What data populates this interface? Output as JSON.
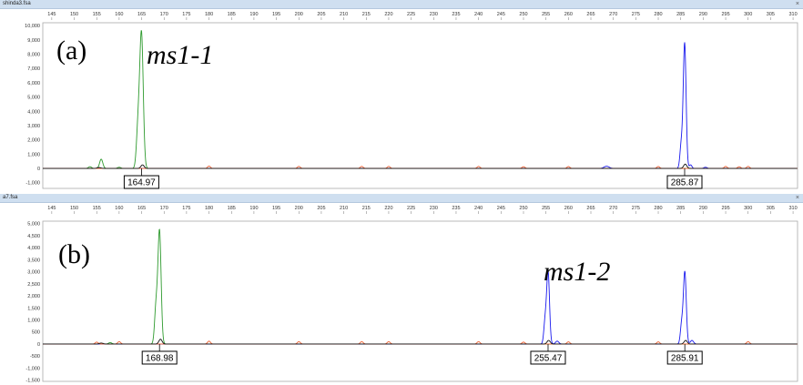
{
  "panels": [
    {
      "file_name": "shinda3.fsa",
      "close_label": "×",
      "panel_label": "(a)",
      "annotation": "ms1-1",
      "peak_labels": [
        "164.97",
        "285.87"
      ],
      "colors": {
        "green": "#2e9a2e",
        "blue": "#1a1aee",
        "red": "#f06030",
        "baseline": "#f07030",
        "black": "#111111"
      }
    },
    {
      "file_name": "a7.fsa",
      "close_label": "×",
      "panel_label": "(b)",
      "annotation": "ms1-2",
      "peak_labels": [
        "168.98",
        "255.47",
        "285.91"
      ],
      "colors": {
        "green": "#2e9a2e",
        "blue": "#1a1aee",
        "red": "#f06030",
        "baseline": "#f07030",
        "black": "#111111"
      }
    }
  ],
  "chart_data": [
    {
      "type": "line",
      "x_ticks": [
        145,
        150,
        155,
        160,
        165,
        170,
        175,
        180,
        185,
        190,
        195,
        200,
        205,
        210,
        215,
        220,
        225,
        230,
        235,
        240,
        245,
        250,
        255,
        260,
        265,
        270,
        275,
        280,
        285,
        290,
        295,
        300,
        305,
        310
      ],
      "xlim": [
        143,
        311
      ],
      "ylim": [
        -1400,
        10200
      ],
      "y_ticks": [
        10000,
        9000,
        8000,
        7000,
        6000,
        5000,
        4000,
        3000,
        2000,
        1000,
        0,
        -1000
      ],
      "y_tick_labels": [
        "10,000",
        "9,000",
        "8,000",
        "7,000",
        "6,000",
        "5,000",
        "4,000",
        "3,000",
        "2,000",
        "1,000",
        "0",
        "-1,000"
      ],
      "series": [
        {
          "color_key": "green",
          "peaks": [
            {
              "x": 164.97,
              "y": 9400,
              "w": 0.55
            },
            {
              "x": 164.2,
              "y": 2800,
              "w": 0.5
            },
            {
              "x": 156.0,
              "y": 650,
              "w": 0.5
            },
            {
              "x": 153.5,
              "y": 120,
              "w": 0.5
            },
            {
              "x": 160.0,
              "y": 80,
              "w": 0.5
            }
          ]
        },
        {
          "color_key": "blue",
          "peaks": [
            {
              "x": 285.87,
              "y": 8800,
              "w": 0.45
            },
            {
              "x": 285.1,
              "y": 1600,
              "w": 0.4
            },
            {
              "x": 268.5,
              "y": 150,
              "w": 0.8
            },
            {
              "x": 287.2,
              "y": 250,
              "w": 0.4
            },
            {
              "x": 290.5,
              "y": 80,
              "w": 0.5
            }
          ]
        },
        {
          "color_key": "red",
          "peaks": [
            {
              "x": 180.0,
              "y": 160,
              "w": 0.45
            },
            {
              "x": 200.0,
              "y": 140,
              "w": 0.45
            },
            {
              "x": 214.0,
              "y": 140,
              "w": 0.45
            },
            {
              "x": 220.0,
              "y": 140,
              "w": 0.45
            },
            {
              "x": 240.0,
              "y": 140,
              "w": 0.45
            },
            {
              "x": 250.0,
              "y": 120,
              "w": 0.45
            },
            {
              "x": 260.0,
              "y": 130,
              "w": 0.45
            },
            {
              "x": 280.0,
              "y": 130,
              "w": 0.45
            },
            {
              "x": 295.0,
              "y": 140,
              "w": 0.45
            },
            {
              "x": 298.0,
              "y": 120,
              "w": 0.45
            },
            {
              "x": 300.0,
              "y": 140,
              "w": 0.45
            }
          ]
        },
        {
          "color_key": "black",
          "peaks": [
            {
              "x": 165.2,
              "y": 250,
              "w": 0.5
            },
            {
              "x": 286.0,
              "y": 300,
              "w": 0.5
            },
            {
              "x": 155.5,
              "y": 60,
              "w": 0.6
            }
          ]
        }
      ],
      "peak_markers": [
        {
          "x": 164.97,
          "label": "164.97"
        },
        {
          "x": 285.87,
          "label": "285.87"
        }
      ]
    },
    {
      "type": "line",
      "x_ticks": [
        145,
        150,
        155,
        160,
        165,
        170,
        175,
        180,
        185,
        190,
        195,
        200,
        205,
        210,
        215,
        220,
        225,
        230,
        235,
        240,
        245,
        250,
        255,
        260,
        265,
        270,
        275,
        280,
        285,
        290,
        295,
        300,
        305,
        310
      ],
      "xlim": [
        143,
        311
      ],
      "ylim": [
        -1550,
        5100
      ],
      "y_ticks": [
        5000,
        4500,
        4000,
        3500,
        3000,
        2500,
        2000,
        1500,
        1000,
        500,
        0,
        -500,
        -1000,
        -1500
      ],
      "y_tick_labels": [
        "5,000",
        "4,500",
        "4,000",
        "3,500",
        "3,000",
        "2,500",
        "2,000",
        "1,500",
        "1,000",
        "500",
        "0",
        "-500",
        "-1,000",
        "-1,500"
      ],
      "series": [
        {
          "color_key": "green",
          "peaks": [
            {
              "x": 168.98,
              "y": 4700,
              "w": 0.5
            },
            {
              "x": 168.2,
              "y": 1500,
              "w": 0.45
            },
            {
              "x": 158.0,
              "y": 60,
              "w": 0.5
            }
          ]
        },
        {
          "color_key": "blue",
          "peaks": [
            {
              "x": 255.47,
              "y": 3000,
              "w": 0.45
            },
            {
              "x": 254.8,
              "y": 900,
              "w": 0.4
            },
            {
              "x": 285.91,
              "y": 3000,
              "w": 0.45
            },
            {
              "x": 285.2,
              "y": 800,
              "w": 0.4
            },
            {
              "x": 257.5,
              "y": 120,
              "w": 0.5
            },
            {
              "x": 287.5,
              "y": 150,
              "w": 0.5
            }
          ]
        },
        {
          "color_key": "red",
          "peaks": [
            {
              "x": 155.0,
              "y": 80,
              "w": 0.45
            },
            {
              "x": 160.0,
              "y": 100,
              "w": 0.45
            },
            {
              "x": 180.0,
              "y": 120,
              "w": 0.45
            },
            {
              "x": 200.0,
              "y": 100,
              "w": 0.45
            },
            {
              "x": 214.0,
              "y": 100,
              "w": 0.45
            },
            {
              "x": 220.0,
              "y": 100,
              "w": 0.45
            },
            {
              "x": 240.0,
              "y": 100,
              "w": 0.45
            },
            {
              "x": 250.0,
              "y": 80,
              "w": 0.45
            },
            {
              "x": 260.0,
              "y": 90,
              "w": 0.45
            },
            {
              "x": 280.0,
              "y": 90,
              "w": 0.45
            },
            {
              "x": 300.0,
              "y": 100,
              "w": 0.45
            }
          ]
        },
        {
          "color_key": "black",
          "peaks": [
            {
              "x": 169.2,
              "y": 200,
              "w": 0.5
            },
            {
              "x": 255.6,
              "y": 150,
              "w": 0.5
            },
            {
              "x": 286.1,
              "y": 150,
              "w": 0.5
            },
            {
              "x": 156.0,
              "y": 40,
              "w": 0.6
            }
          ]
        }
      ],
      "peak_markers": [
        {
          "x": 168.98,
          "label": "168.98"
        },
        {
          "x": 255.47,
          "label": "255.47"
        },
        {
          "x": 285.91,
          "label": "285.91"
        }
      ]
    }
  ]
}
